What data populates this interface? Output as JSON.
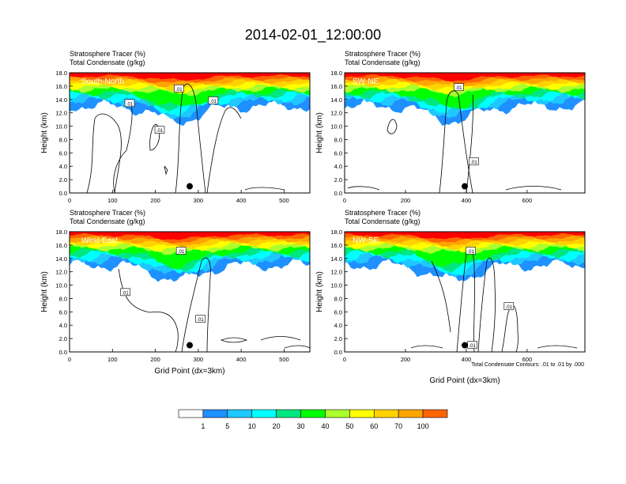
{
  "title": "2014-02-01_12:00:00",
  "colors": {
    "scale": [
      "#ffffff",
      "#1e90ff",
      "#1ec8ff",
      "#00ffff",
      "#00e680",
      "#00ff00",
      "#aaff2d",
      "#ffff00",
      "#ffd200",
      "#ffa500",
      "#ff6400",
      "#ff0000"
    ],
    "contour": "#000000",
    "marker": "#000000"
  },
  "colorbar": {
    "labels": [
      "1",
      "5",
      "10",
      "20",
      "30",
      "40",
      "50",
      "60",
      "70",
      "100"
    ]
  },
  "xaxis_label": "Grid Point (dx=3km)",
  "contour_note": "Total Condensate Contours: .01 to .01 by .000",
  "chart_data": [
    {
      "type": "heatmap",
      "panel_label": "South-North",
      "subtitle_line1": "Stratosphere Tracer   (%)",
      "subtitle_line2": "Total Condensate   (g/kg)",
      "ylabel": "Height (km)",
      "ylim": [
        0,
        18
      ],
      "yticks": [
        "0.0",
        "2.0",
        "4.0",
        "6.0",
        "8.0",
        "10.0",
        "12.0",
        "14.0",
        "16.0",
        "18.0"
      ],
      "xlim": [
        0,
        560
      ],
      "xticks": [
        "0",
        "100",
        "200",
        "300",
        "400",
        "500"
      ],
      "xtick_values": [
        0,
        100,
        200,
        300,
        400,
        500
      ],
      "show_xlabel": false,
      "marker": {
        "x": 280,
        "y": 1.0
      },
      "contour_labels": [
        {
          "text": ".01",
          "x": 255,
          "y": 15.6
        },
        {
          "text": ".01",
          "x": 140,
          "y": 13.4
        },
        {
          "text": ".01",
          "x": 335,
          "y": 13.8
        },
        {
          "text": ".01",
          "x": 210,
          "y": 9.4
        }
      ]
    },
    {
      "type": "heatmap",
      "panel_label": "SW-NE",
      "subtitle_line1": "Stratosphere Tracer   (%)",
      "subtitle_line2": "Total Condensate   (g/kg)",
      "ylabel": "Height (km)",
      "ylim": [
        0,
        18
      ],
      "yticks": [
        "0.0",
        "2.0",
        "4.0",
        "6.0",
        "8.0",
        "10.0",
        "12.0",
        "14.0",
        "16.0",
        "18.0"
      ],
      "xlim": [
        0,
        790
      ],
      "xticks": [
        "0",
        "200",
        "400",
        "600"
      ],
      "xtick_values": [
        0,
        200,
        400,
        600
      ],
      "show_xlabel": false,
      "marker": {
        "x": 395,
        "y": 1.0
      },
      "contour_labels": [
        {
          "text": ".01",
          "x": 375,
          "y": 15.8
        },
        {
          "text": ".01",
          "x": 425,
          "y": 4.7
        }
      ]
    },
    {
      "type": "heatmap",
      "panel_label": "West-East",
      "subtitle_line1": "Stratosphere Tracer   (%)",
      "subtitle_line2": "Total Condensate   (g/kg)",
      "ylabel": "Height (km)",
      "ylim": [
        0,
        18
      ],
      "yticks": [
        "0.0",
        "2.0",
        "4.0",
        "6.0",
        "8.0",
        "10.0",
        "12.0",
        "14.0",
        "16.0",
        "18.0"
      ],
      "xlim": [
        0,
        560
      ],
      "xticks": [
        "0",
        "100",
        "200",
        "300",
        "400",
        "500"
      ],
      "xtick_values": [
        0,
        100,
        200,
        300,
        400,
        500
      ],
      "show_xlabel": true,
      "marker": {
        "x": 280,
        "y": 1.0
      },
      "contour_labels": [
        {
          "text": ".01",
          "x": 260,
          "y": 15.1
        },
        {
          "text": ".01",
          "x": 130,
          "y": 8.9
        },
        {
          "text": ".01",
          "x": 305,
          "y": 4.9
        }
      ]
    },
    {
      "type": "heatmap",
      "panel_label": "NW-SE",
      "subtitle_line1": "Stratosphere Tracer   (%)",
      "subtitle_line2": "Total Condensate   (g/kg)",
      "ylabel": "Height (km)",
      "ylim": [
        0,
        18
      ],
      "yticks": [
        "0.0",
        "2.0",
        "4.0",
        "6.0",
        "8.0",
        "10.0",
        "12.0",
        "14.0",
        "16.0",
        "18.0"
      ],
      "xlim": [
        0,
        790
      ],
      "xticks": [
        "0",
        "200",
        "400",
        "600"
      ],
      "xtick_values": [
        0,
        200,
        400,
        600
      ],
      "show_xlabel": true,
      "marker": {
        "x": 395,
        "y": 1.0
      },
      "contour_labels": [
        {
          "text": ".01",
          "x": 415,
          "y": 15.1
        },
        {
          "text": ".01",
          "x": 540,
          "y": 6.8
        },
        {
          "text": ".01",
          "x": 420,
          "y": 1.0
        }
      ]
    }
  ]
}
